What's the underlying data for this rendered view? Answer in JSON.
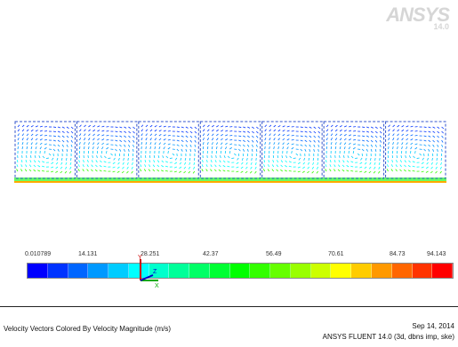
{
  "logo": {
    "text": "ANSYS",
    "version": "14.0"
  },
  "colorbar": {
    "labels": [
      "0.010789",
      "14.131",
      "28.251",
      "42.37",
      "56.49",
      "70.61",
      "84.73",
      "94.143"
    ],
    "colors": [
      "#0000ff",
      "#0033ff",
      "#0066ff",
      "#0099ff",
      "#00ccff",
      "#00ffff",
      "#00ffcc",
      "#00ff99",
      "#00ff66",
      "#00ff33",
      "#00ff00",
      "#33ff00",
      "#66ff00",
      "#99ff00",
      "#ccff00",
      "#ffff00",
      "#ffcc00",
      "#ff9900",
      "#ff6600",
      "#ff3300",
      "#ff0000"
    ]
  },
  "triad": {
    "x_label": "X",
    "y_label": "Y",
    "z_label": "Z",
    "x_color": "#00aa00",
    "y_color": "#cc0000",
    "z_color": "#0000cc"
  },
  "footer": {
    "title": "Velocity Vectors Colored By Velocity Magnitude (m/s)",
    "date": "Sep 14, 2014",
    "solver": "ANSYS FLUENT 14.0 (3d, dbns imp, ske)"
  },
  "field": {
    "cavity_count": 7,
    "frame_color": "#3355cc",
    "wall_color": "#ffaa00"
  }
}
